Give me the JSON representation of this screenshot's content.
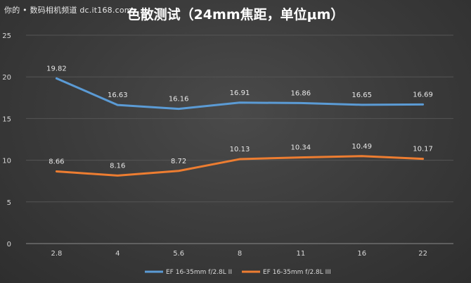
{
  "watermark": "你的 • 数码相机频道 dc.it168.com",
  "chart_data": {
    "type": "line",
    "title": "色散测试（24mm焦距，单位μm）",
    "xlabel": "",
    "ylabel": "",
    "categories": [
      "2.8",
      "4",
      "5.6",
      "8",
      "11",
      "16",
      "22"
    ],
    "ylim": [
      0,
      25
    ],
    "yticks": [
      0,
      5,
      10,
      15,
      20,
      25
    ],
    "grid": true,
    "legend_position": "bottom",
    "series": [
      {
        "name": "EF 16-35mm f/2.8L II",
        "color": "#5b9bd5",
        "values": [
          19.82,
          16.63,
          16.16,
          16.91,
          16.86,
          16.65,
          16.69
        ]
      },
      {
        "name": "EF 16-35mm f/2.8L III",
        "color": "#ed7d31",
        "values": [
          8.66,
          8.16,
          8.72,
          10.13,
          10.34,
          10.49,
          10.17
        ]
      }
    ]
  }
}
